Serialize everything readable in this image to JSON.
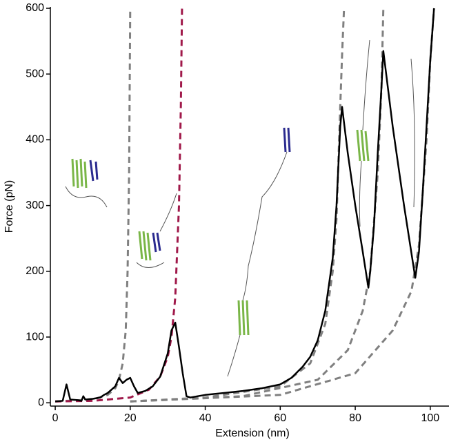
{
  "chart_data": {
    "type": "line",
    "x_label": "Extension (nm)",
    "y_label": "Force (pN)",
    "xlim": [
      -1.3,
      105
    ],
    "ylim": [
      -5,
      600
    ],
    "xticks": [
      0,
      20,
      40,
      60,
      80,
      100
    ],
    "yticks": [
      0,
      100,
      200,
      300,
      400,
      500,
      600
    ],
    "series": [
      {
        "color": "#808080",
        "dash": true,
        "x": [
          0,
          10,
          14,
          16,
          17,
          18,
          18.8,
          19.3,
          19.7,
          20
        ],
        "values": [
          2,
          5,
          12,
          22,
          35,
          60,
          110,
          200,
          350,
          600
        ]
      },
      {
        "color": "#a0194a",
        "dash": true,
        "x": [
          0,
          10,
          20,
          25,
          28,
          30,
          31,
          32,
          33,
          33.5,
          33.8
        ],
        "values": [
          2,
          3,
          8,
          20,
          40,
          70,
          100,
          160,
          300,
          450,
          600
        ]
      },
      {
        "color": "#808080",
        "dash": true,
        "x": [
          20,
          40,
          60,
          68,
          72,
          74,
          75,
          76,
          76.5,
          77
        ],
        "values": [
          2,
          8,
          25,
          60,
          120,
          200,
          280,
          450,
          530,
          600
        ]
      },
      {
        "color": "#808080",
        "dash": true,
        "x": [
          20,
          50,
          70,
          78,
          82,
          84,
          86,
          87,
          87.5
        ],
        "values": [
          2,
          10,
          35,
          80,
          140,
          200,
          350,
          480,
          600
        ]
      },
      {
        "color": "#808080",
        "dash": true,
        "x": [
          20,
          60,
          80,
          90,
          95,
          97,
          99,
          100,
          101
        ],
        "values": [
          2,
          12,
          45,
          110,
          170,
          240,
          400,
          520,
          600
        ]
      },
      {
        "color": "#000000",
        "dash": false,
        "x": [
          0,
          2,
          3,
          4,
          6,
          7,
          7.5,
          8,
          10,
          12,
          13,
          14,
          16,
          17,
          18,
          19,
          20,
          21,
          22,
          24,
          26,
          28,
          30,
          31,
          32,
          33,
          34,
          35,
          36,
          38,
          40,
          45,
          50,
          55,
          60,
          63,
          66,
          68,
          70,
          72,
          74,
          75,
          76,
          76.5,
          78,
          80,
          82,
          83.5,
          84,
          85,
          86,
          87,
          87.5,
          90,
          93,
          96,
          97,
          98,
          99,
          100,
          101
        ],
        "values": [
          2,
          3,
          28,
          5,
          4,
          3,
          10,
          5,
          6,
          8,
          12,
          15,
          25,
          38,
          30,
          35,
          38,
          25,
          15,
          18,
          25,
          40,
          75,
          110,
          122,
          85,
          45,
          10,
          8,
          10,
          12,
          15,
          18,
          22,
          28,
          38,
          55,
          70,
          95,
          140,
          220,
          300,
          420,
          450,
          380,
          300,
          230,
          175,
          200,
          270,
          380,
          480,
          535,
          420,
          300,
          190,
          230,
          320,
          420,
          520,
          600
        ]
      }
    ]
  }
}
